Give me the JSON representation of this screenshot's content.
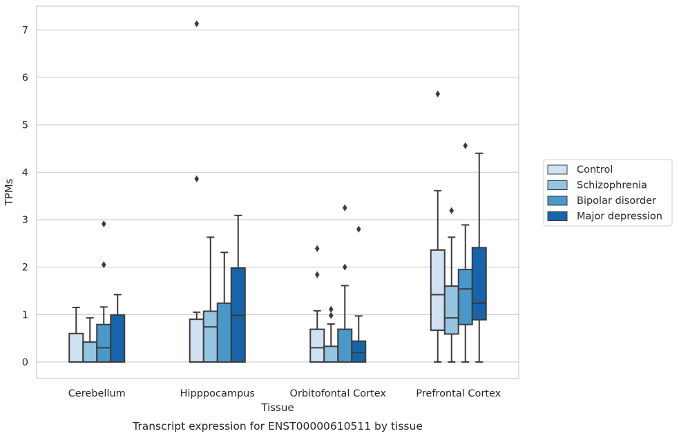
{
  "chart_data": {
    "type": "boxplot",
    "caption": "Transcript expression for ENST00000610511 by tissue",
    "xlabel": "Tissue",
    "ylabel": "TPMs",
    "ylim": [
      -0.35,
      7.5
    ],
    "yticks": [
      0,
      1,
      2,
      3,
      4,
      5,
      6,
      7
    ],
    "grid": "horizontal",
    "legend_position": "right",
    "categories": [
      "Cerebellum",
      "Hipppocampus",
      "Orbitofontal Cortex",
      "Prefrontal Cortex"
    ],
    "series": [
      {
        "name": "Control",
        "color": "#d0e1f2",
        "boxes": [
          {
            "whislo": 0,
            "q1": 0,
            "med": 0,
            "q3": 0.6,
            "whishi": 1.15,
            "fliers": []
          },
          {
            "whislo": 0,
            "q1": 0,
            "med": 0,
            "q3": 0.9,
            "whishi": 1.05,
            "fliers": [
              7.13,
              3.86
            ]
          },
          {
            "whislo": 0,
            "q1": 0,
            "med": 0.3,
            "q3": 0.69,
            "whishi": 1.08,
            "fliers": [
              2.39,
              1.84
            ]
          },
          {
            "whislo": 0,
            "q1": 0.67,
            "med": 1.42,
            "q3": 2.36,
            "whishi": 3.61,
            "fliers": [
              5.65
            ]
          }
        ]
      },
      {
        "name": "Schizophrenia",
        "color": "#94c4df",
        "boxes": [
          {
            "whislo": 0,
            "q1": 0,
            "med": 0,
            "q3": 0.42,
            "whishi": 0.93,
            "fliers": []
          },
          {
            "whislo": 0,
            "q1": 0,
            "med": 0.74,
            "q3": 1.07,
            "whishi": 2.63,
            "fliers": []
          },
          {
            "whislo": 0,
            "q1": 0,
            "med": 0,
            "q3": 0.33,
            "whishi": 0.8,
            "fliers": [
              1.11,
              0.98
            ]
          },
          {
            "whislo": 0,
            "q1": 0.59,
            "med": 0.93,
            "q3": 1.6,
            "whishi": 2.63,
            "fliers": [
              3.19
            ]
          }
        ]
      },
      {
        "name": "Bipolar disorder",
        "color": "#4a98c9",
        "boxes": [
          {
            "whislo": 0,
            "q1": 0,
            "med": 0.3,
            "q3": 0.79,
            "whishi": 1.16,
            "fliers": [
              2.91,
              2.05
            ]
          },
          {
            "whislo": 0,
            "q1": 0,
            "med": 0,
            "q3": 1.24,
            "whishi": 2.31,
            "fliers": []
          },
          {
            "whislo": 0,
            "q1": 0,
            "med": 0,
            "q3": 0.69,
            "whishi": 1.61,
            "fliers": [
              3.25,
              2.0
            ]
          },
          {
            "whislo": 0,
            "q1": 0.79,
            "med": 1.54,
            "q3": 1.95,
            "whishi": 2.89,
            "fliers": [
              4.56
            ]
          }
        ]
      },
      {
        "name": "Major depression",
        "color": "#1764ab",
        "boxes": [
          {
            "whislo": 0,
            "q1": 0,
            "med": 0,
            "q3": 0.99,
            "whishi": 1.42,
            "fliers": []
          },
          {
            "whislo": 0,
            "q1": 0,
            "med": 0.98,
            "q3": 1.98,
            "whishi": 3.09,
            "fliers": []
          },
          {
            "whislo": 0,
            "q1": 0,
            "med": 0.2,
            "q3": 0.44,
            "whishi": 0.97,
            "fliers": [
              2.8
            ]
          },
          {
            "whislo": 0,
            "q1": 0.89,
            "med": 1.24,
            "q3": 2.41,
            "whishi": 4.4,
            "fliers": []
          }
        ]
      }
    ]
  }
}
